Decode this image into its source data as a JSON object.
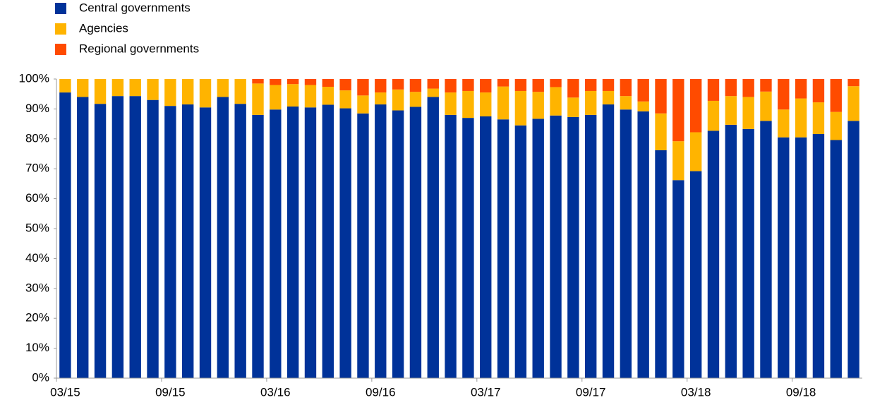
{
  "chart_data": {
    "type": "stacked-bar",
    "categories": [
      "03/15",
      null,
      null,
      null,
      null,
      null,
      "09/15",
      null,
      null,
      null,
      null,
      null,
      "03/16",
      null,
      null,
      null,
      null,
      null,
      "09/16",
      null,
      null,
      null,
      null,
      null,
      "03/17",
      null,
      null,
      null,
      null,
      null,
      "09/17",
      null,
      null,
      null,
      null,
      null,
      "03/18",
      null,
      null,
      null,
      null,
      null,
      "09/18",
      null,
      null,
      null
    ],
    "series": [
      {
        "name": "Central governments",
        "color": "#003299",
        "values": [
          95.5,
          94,
          91.7,
          94.3,
          94.3,
          93,
          91,
          91.5,
          90.5,
          94,
          91.7,
          88,
          89.8,
          90.8,
          90.5,
          91.4,
          90.2,
          88.5,
          91.5,
          89.5,
          90.7,
          94,
          88,
          87,
          87.5,
          86.5,
          84.5,
          86.7,
          87.8,
          87.3,
          88,
          91.5,
          89.8,
          89.2,
          76.2,
          66.2,
          69.2,
          82.7,
          84.7,
          83.3,
          86,
          80.5,
          80.5,
          81.6,
          79.6,
          86
        ]
      },
      {
        "name": "Agencies",
        "color": "#ffb400",
        "values": [
          4.5,
          6,
          8.3,
          5.7,
          5.7,
          7,
          9,
          8.5,
          9.5,
          6,
          8.3,
          10.5,
          8.2,
          7.5,
          7.5,
          6,
          6,
          6,
          4,
          7,
          5,
          2.8,
          7.5,
          9,
          8,
          11,
          11.5,
          9,
          9.5,
          6.5,
          8,
          4.5,
          4.5,
          3.3,
          12.3,
          13,
          13,
          10,
          9.6,
          10.7,
          9.8,
          9.3,
          13,
          10.6,
          9.4,
          11.6
        ]
      },
      {
        "name": "Regional governments",
        "color": "#ff4b00",
        "values": [
          0,
          0,
          0,
          0,
          0,
          0,
          0,
          0,
          0,
          0,
          0,
          1.5,
          2,
          1.7,
          2,
          2.6,
          3.8,
          5.5,
          4.5,
          3.5,
          4.3,
          3.2,
          4.5,
          4,
          4.5,
          2.5,
          4,
          4.3,
          2.7,
          6.2,
          4,
          4,
          5.7,
          7.5,
          11.5,
          20.8,
          17.8,
          7.3,
          5.7,
          6,
          4.2,
          10.2,
          6.5,
          7.8,
          11,
          2.4
        ]
      }
    ],
    "ylim": [
      0,
      100
    ],
    "yticks": [
      {
        "value": 0,
        "label": "0%"
      },
      {
        "value": 10,
        "label": "10%"
      },
      {
        "value": 20,
        "label": "20%"
      },
      {
        "value": 30,
        "label": "30%"
      },
      {
        "value": 40,
        "label": "40%"
      },
      {
        "value": 50,
        "label": "50%"
      },
      {
        "value": 60,
        "label": "60%"
      },
      {
        "value": 70,
        "label": "70%"
      },
      {
        "value": 80,
        "label": "80%"
      },
      {
        "value": 90,
        "label": "90%"
      },
      {
        "value": 100,
        "label": "100%"
      }
    ],
    "grid": false,
    "legend": "top-left"
  }
}
